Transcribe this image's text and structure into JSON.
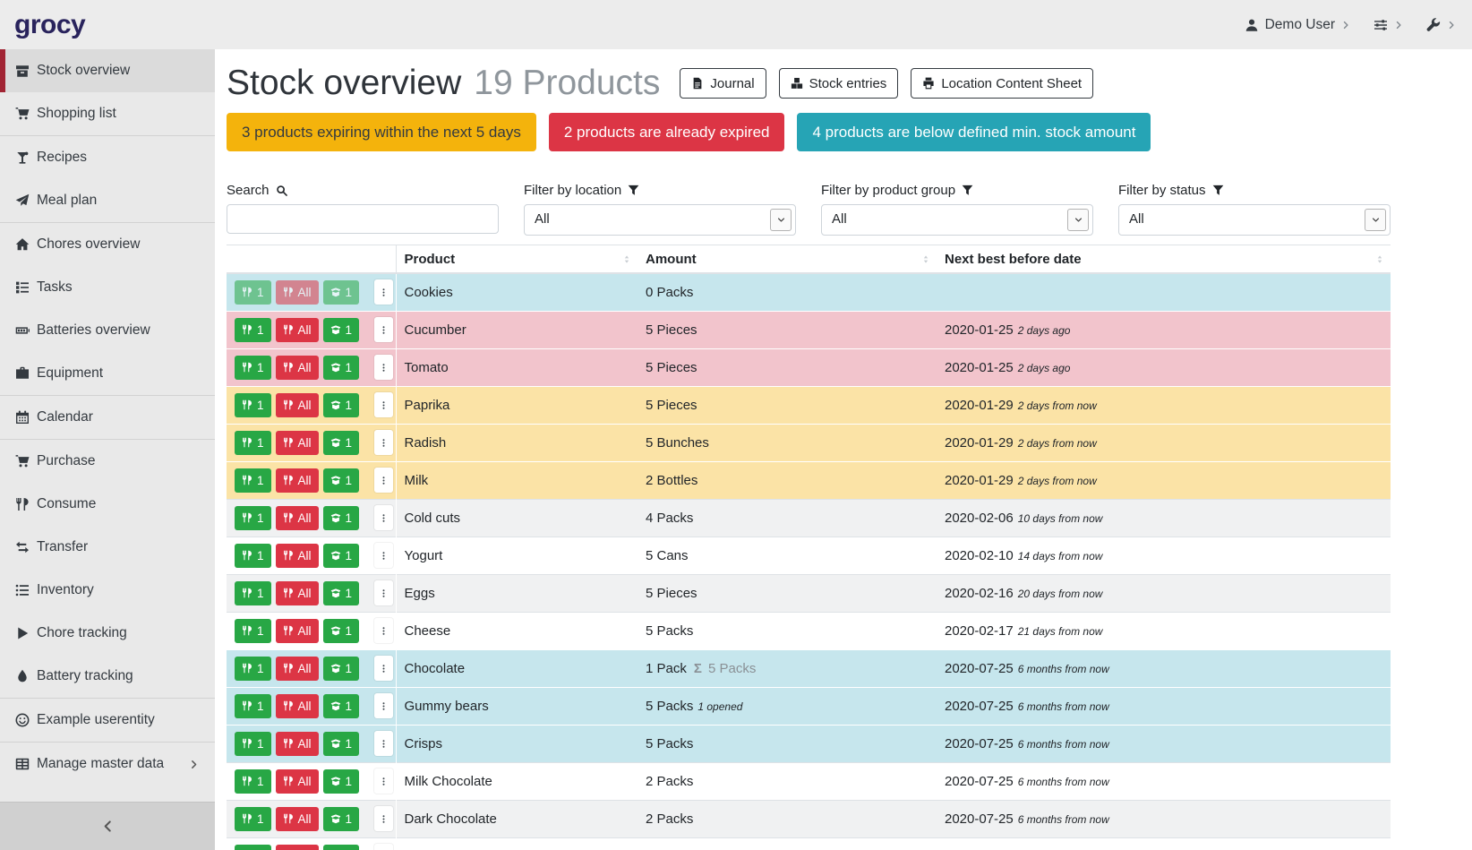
{
  "navbar": {
    "brand": "grocy",
    "user_label": "Demo User"
  },
  "sidebar": {
    "items": [
      {
        "label": "Stock overview",
        "icon": "box-icon",
        "active": true,
        "divider_after": false
      },
      {
        "label": "Shopping list",
        "icon": "cart-icon",
        "divider_after": true
      },
      {
        "label": "Recipes",
        "icon": "cocktail-icon",
        "divider_after": false
      },
      {
        "label": "Meal plan",
        "icon": "paper-plane-icon",
        "divider_after": true
      },
      {
        "label": "Chores overview",
        "icon": "home-icon",
        "divider_after": false
      },
      {
        "label": "Tasks",
        "icon": "tasks-icon",
        "divider_after": false
      },
      {
        "label": "Batteries overview",
        "icon": "battery-icon",
        "divider_after": false
      },
      {
        "label": "Equipment",
        "icon": "toolbox-icon",
        "divider_after": true
      },
      {
        "label": "Calendar",
        "icon": "calendar-icon",
        "divider_after": true
      },
      {
        "label": "Purchase",
        "icon": "cart-icon",
        "divider_after": false
      },
      {
        "label": "Consume",
        "icon": "utensils-icon",
        "divider_after": false
      },
      {
        "label": "Transfer",
        "icon": "exchange-icon",
        "divider_after": false
      },
      {
        "label": "Inventory",
        "icon": "list-icon",
        "divider_after": false
      },
      {
        "label": "Chore tracking",
        "icon": "play-icon",
        "divider_after": false
      },
      {
        "label": "Battery tracking",
        "icon": "drop-icon",
        "divider_after": true
      },
      {
        "label": "Example userentity",
        "icon": "smiley-icon",
        "divider_after": true
      },
      {
        "label": "Manage master data",
        "icon": "table-icon",
        "chevron": true,
        "divider_after": false
      }
    ]
  },
  "page": {
    "title": "Stock overview",
    "subtitle": "19 Products",
    "toolbar": [
      {
        "label": "Journal",
        "icon": "journal-icon"
      },
      {
        "label": "Stock entries",
        "icon": "cubes-icon"
      },
      {
        "label": "Location Content Sheet",
        "icon": "print-icon"
      }
    ],
    "alerts": [
      {
        "text": "3 products expiring within the next 5 days",
        "type": "warning",
        "color": "#f4b30c",
        "text_color": "#343a40"
      },
      {
        "text": "2 products are already expired",
        "type": "danger",
        "color": "#dc3545",
        "text_color": "#ffffff"
      },
      {
        "text": "4 products are below defined min. stock amount",
        "type": "info",
        "color": "#26a4b5",
        "text_color": "#ffffff"
      }
    ]
  },
  "filters": {
    "search": {
      "label": "Search",
      "icon": "search-icon",
      "value": ""
    },
    "location": {
      "label": "Filter by location",
      "icon": "filter-icon",
      "value": "All"
    },
    "product_group": {
      "label": "Filter by product group",
      "icon": "filter-icon",
      "value": "All"
    },
    "status": {
      "label": "Filter by status",
      "icon": "filter-icon",
      "value": "All"
    }
  },
  "table": {
    "columns": [
      "",
      "Product",
      "Amount",
      "Next best before date"
    ],
    "row_actions": {
      "consume_one": "1",
      "consume_all": "All",
      "open_one": "1"
    },
    "rows": [
      {
        "product": "Cookies",
        "amount": "0 Packs",
        "amount_total": "",
        "amount_opened": "",
        "date": "",
        "timeago": "",
        "status": "info",
        "muted_buttons": true
      },
      {
        "product": "Cucumber",
        "amount": "5 Pieces",
        "amount_total": "",
        "amount_opened": "",
        "date": "2020-01-25",
        "timeago": "2 days ago",
        "status": "danger"
      },
      {
        "product": "Tomato",
        "amount": "5 Pieces",
        "amount_total": "",
        "amount_opened": "",
        "date": "2020-01-25",
        "timeago": "2 days ago",
        "status": "danger"
      },
      {
        "product": "Paprika",
        "amount": "5 Pieces",
        "amount_total": "",
        "amount_opened": "",
        "date": "2020-01-29",
        "timeago": "2 days from now",
        "status": "warning"
      },
      {
        "product": "Radish",
        "amount": "5 Bunches",
        "amount_total": "",
        "amount_opened": "",
        "date": "2020-01-29",
        "timeago": "2 days from now",
        "status": "warning"
      },
      {
        "product": "Milk",
        "amount": "2 Bottles",
        "amount_total": "",
        "amount_opened": "",
        "date": "2020-01-29",
        "timeago": "2 days from now",
        "status": "warning"
      },
      {
        "product": "Cold cuts",
        "amount": "4 Packs",
        "amount_total": "",
        "amount_opened": "",
        "date": "2020-02-06",
        "timeago": "10 days from now",
        "status": "stripe"
      },
      {
        "product": "Yogurt",
        "amount": "5 Cans",
        "amount_total": "",
        "amount_opened": "",
        "date": "2020-02-10",
        "timeago": "14 days from now",
        "status": "plain"
      },
      {
        "product": "Eggs",
        "amount": "5 Pieces",
        "amount_total": "",
        "amount_opened": "",
        "date": "2020-02-16",
        "timeago": "20 days from now",
        "status": "stripe"
      },
      {
        "product": "Cheese",
        "amount": "5 Packs",
        "amount_total": "",
        "amount_opened": "",
        "date": "2020-02-17",
        "timeago": "21 days from now",
        "status": "plain"
      },
      {
        "product": "Chocolate",
        "amount": "1 Pack",
        "amount_total": "5 Packs",
        "amount_opened": "",
        "date": "2020-07-25",
        "timeago": "6 months from now",
        "status": "info"
      },
      {
        "product": "Gummy bears",
        "amount": "5 Packs",
        "amount_total": "",
        "amount_opened": "1 opened",
        "date": "2020-07-25",
        "timeago": "6 months from now",
        "status": "info"
      },
      {
        "product": "Crisps",
        "amount": "5 Packs",
        "amount_total": "",
        "amount_opened": "",
        "date": "2020-07-25",
        "timeago": "6 months from now",
        "status": "info"
      },
      {
        "product": "Milk Chocolate",
        "amount": "2 Packs",
        "amount_total": "",
        "amount_opened": "",
        "date": "2020-07-25",
        "timeago": "6 months from now",
        "status": "plain"
      },
      {
        "product": "Dark Chocolate",
        "amount": "2 Packs",
        "amount_total": "",
        "amount_opened": "",
        "date": "2020-07-25",
        "timeago": "6 months from now",
        "status": "stripe"
      },
      {
        "product": "",
        "amount": "",
        "amount_total": "",
        "amount_opened": "",
        "date": "",
        "timeago": "",
        "status": "plain",
        "partial": true
      }
    ]
  },
  "colors": {
    "accent_red": "#a12433",
    "success_green": "#28a745",
    "danger_red": "#dc3545",
    "warning_yellow": "#f4b30c",
    "info_teal": "#26a4b5",
    "row_info": "#c6e6ed",
    "row_danger": "#f2c4cc",
    "row_warning": "#fbe3a6",
    "row_stripe": "#f0f1f2"
  }
}
